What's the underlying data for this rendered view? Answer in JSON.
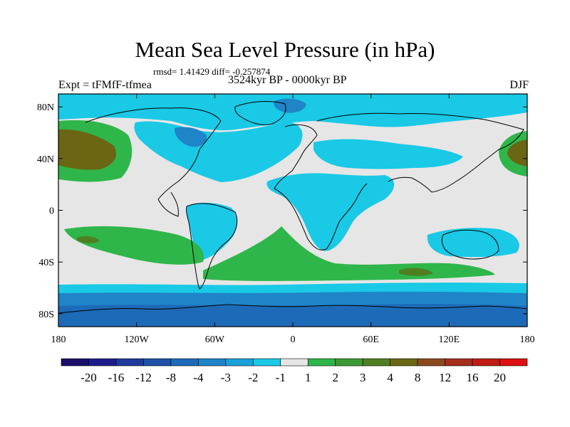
{
  "title": "Mean Sea Level Pressure (in hPa)",
  "stats": "rmsd= 1.41429 diff= -0.257874",
  "experiment": "Expt = tFMfF-tfmea",
  "period": "3524kyr BP - 0000kyr BP",
  "season": "DJF",
  "lat_ticks": [
    "80N",
    "40N",
    "0",
    "40S",
    "80S"
  ],
  "lon_ticks": [
    "180",
    "120W",
    "60W",
    "0",
    "60E",
    "120E",
    "180"
  ],
  "colorbar": {
    "labels": [
      "-20",
      "-16",
      "-12",
      "-8",
      "-4",
      "-3",
      "-2",
      "-1",
      "1",
      "2",
      "3",
      "4",
      "8",
      "12",
      "16",
      "20"
    ],
    "colors": [
      "#1a0f6b",
      "#1c1c8c",
      "#1d3a9c",
      "#1e52a8",
      "#1d6ab8",
      "#1f84c8",
      "#1aa0da",
      "#19c9e6",
      "#e6e6e6",
      "#2fb64a",
      "#3c9a35",
      "#4f7f22",
      "#6b6614",
      "#8a4a1e",
      "#a52e1e",
      "#c01b14",
      "#dd0f10"
    ]
  },
  "map_colors": {
    "neutral": "#e6e6e6",
    "coast": "#000000"
  }
}
